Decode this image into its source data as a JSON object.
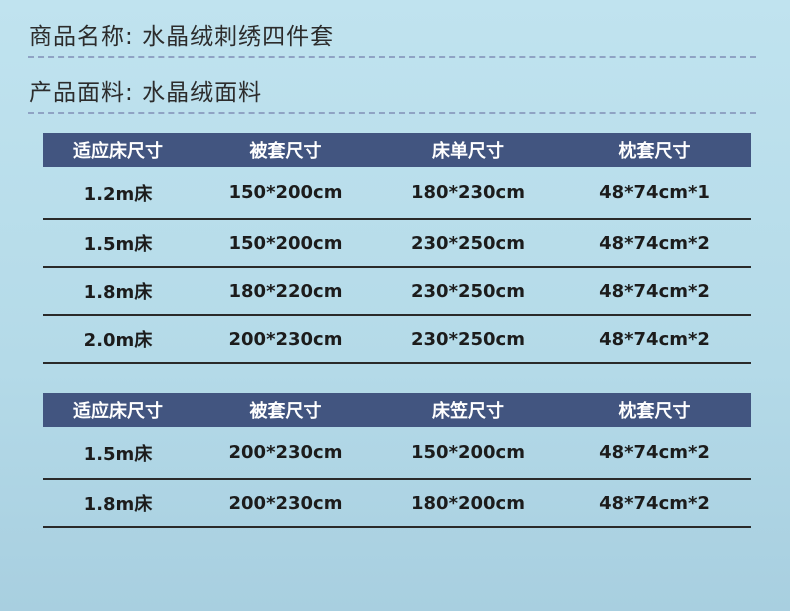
{
  "product_name": {
    "label": "商品名称:",
    "value": "水晶绒刺绣四件套"
  },
  "fabric": {
    "label": "产品面料:",
    "value": "水晶绒面料"
  },
  "table1": {
    "headers": [
      "适应床尺寸",
      "被套尺寸",
      "床单尺寸",
      "枕套尺寸"
    ],
    "rows": [
      [
        "1.2m床",
        "150*200cm",
        "180*230cm",
        "48*74cm*1"
      ],
      [
        "1.5m床",
        "150*200cm",
        "230*250cm",
        "48*74cm*2"
      ],
      [
        "1.8m床",
        "180*220cm",
        "230*250cm",
        "48*74cm*2"
      ],
      [
        "2.0m床",
        "200*230cm",
        "230*250cm",
        "48*74cm*2"
      ]
    ]
  },
  "table2": {
    "headers": [
      "适应床尺寸",
      "被套尺寸",
      "床笠尺寸",
      "枕套尺寸"
    ],
    "rows": [
      [
        "1.5m床",
        "200*230cm",
        "150*200cm",
        "48*74cm*2"
      ],
      [
        "1.8m床",
        "200*230cm",
        "180*200cm",
        "48*74cm*2"
      ]
    ]
  }
}
